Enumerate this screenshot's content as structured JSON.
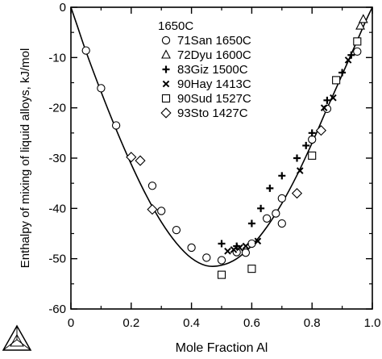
{
  "chart_data": {
    "type": "scatter",
    "xlabel": "Mole Fraction Al",
    "ylabel": "Enthalpy of mixing of liquid alloys, kJ/mol",
    "xlim": [
      0,
      1
    ],
    "ylim": [
      -60,
      0
    ],
    "grid": false,
    "x_ticks": [
      "0",
      "0.2",
      "0.4",
      "0.6",
      "0.8",
      "1.0"
    ],
    "x_tick_values": [
      0,
      0.2,
      0.4,
      0.6,
      0.8,
      1.0
    ],
    "y_ticks": [
      "0",
      "-10",
      "-20",
      "-30",
      "-40",
      "-50",
      "-60"
    ],
    "y_tick_values": [
      0,
      -10,
      -20,
      -30,
      -40,
      -50,
      -60
    ],
    "legend_title": "1650C",
    "legend_position": "top-center",
    "curve": {
      "name": "1650C",
      "x": [
        0,
        0.02,
        0.05,
        0.1,
        0.15,
        0.2,
        0.25,
        0.3,
        0.35,
        0.4,
        0.45,
        0.5,
        0.55,
        0.6,
        0.65,
        0.7,
        0.75,
        0.8,
        0.85,
        0.9,
        0.95,
        0.98,
        1.0
      ],
      "y": [
        0,
        -3.5,
        -8.8,
        -16.8,
        -24.3,
        -31.2,
        -37.4,
        -42.7,
        -46.9,
        -49.9,
        -51.4,
        -51.3,
        -50.0,
        -47.4,
        -43.7,
        -39.0,
        -33.4,
        -27.0,
        -20.1,
        -13.4,
        -6.6,
        -2.5,
        0
      ]
    },
    "series": [
      {
        "name": "71San 1650C",
        "marker": "circle",
        "points": [
          [
            0.05,
            -8.6
          ],
          [
            0.1,
            -16.1
          ],
          [
            0.15,
            -23.5
          ],
          [
            0.27,
            -35.5
          ],
          [
            0.3,
            -40.5
          ],
          [
            0.35,
            -44.3
          ],
          [
            0.4,
            -47.8
          ],
          [
            0.45,
            -49.8
          ],
          [
            0.5,
            -50.3
          ],
          [
            0.55,
            -48.7
          ],
          [
            0.58,
            -48.8
          ],
          [
            0.6,
            -47.0
          ],
          [
            0.65,
            -42.0
          ],
          [
            0.68,
            -41.0
          ],
          [
            0.7,
            -38.0
          ],
          [
            0.7,
            -43.0
          ],
          [
            0.8,
            -26.3
          ],
          [
            0.85,
            -20.2
          ],
          [
            0.95,
            -8.8
          ]
        ]
      },
      {
        "name": "72Dyu 1600C",
        "marker": "triangle",
        "points": [
          [
            0.96,
            -3.7
          ],
          [
            0.97,
            -2.4
          ]
        ]
      },
      {
        "name": "83Giz 1500C",
        "marker": "plus",
        "points": [
          [
            0.5,
            -47.0
          ],
          [
            0.55,
            -47.5
          ],
          [
            0.6,
            -43.0
          ],
          [
            0.63,
            -40.0
          ],
          [
            0.66,
            -36.0
          ],
          [
            0.7,
            -33.5
          ],
          [
            0.75,
            -30.0
          ],
          [
            0.78,
            -27.5
          ],
          [
            0.8,
            -25.0
          ],
          [
            0.85,
            -18.5
          ],
          [
            0.9,
            -13.0
          ],
          [
            0.93,
            -9.5
          ]
        ]
      },
      {
        "name": "90Hay 1413C",
        "marker": "x",
        "points": [
          [
            0.52,
            -48.5
          ],
          [
            0.54,
            -48.2
          ],
          [
            0.56,
            -47.8
          ],
          [
            0.58,
            -47.5
          ],
          [
            0.62,
            -46.5
          ],
          [
            0.76,
            -32.5
          ],
          [
            0.84,
            -20.0
          ],
          [
            0.87,
            -18.0
          ],
          [
            0.92,
            -10.5
          ]
        ]
      },
      {
        "name": "90Sud 1527C",
        "marker": "square",
        "points": [
          [
            0.5,
            -53.2
          ],
          [
            0.6,
            -52.0
          ],
          [
            0.8,
            -29.5
          ],
          [
            0.88,
            -14.5
          ],
          [
            0.95,
            -6.8
          ]
        ]
      },
      {
        "name": "93Sto 1427C",
        "marker": "diamond",
        "points": [
          [
            0.2,
            -29.8
          ],
          [
            0.23,
            -30.5
          ],
          [
            0.27,
            -40.2
          ],
          [
            0.75,
            -37.0
          ],
          [
            0.83,
            -24.5
          ]
        ]
      }
    ]
  }
}
